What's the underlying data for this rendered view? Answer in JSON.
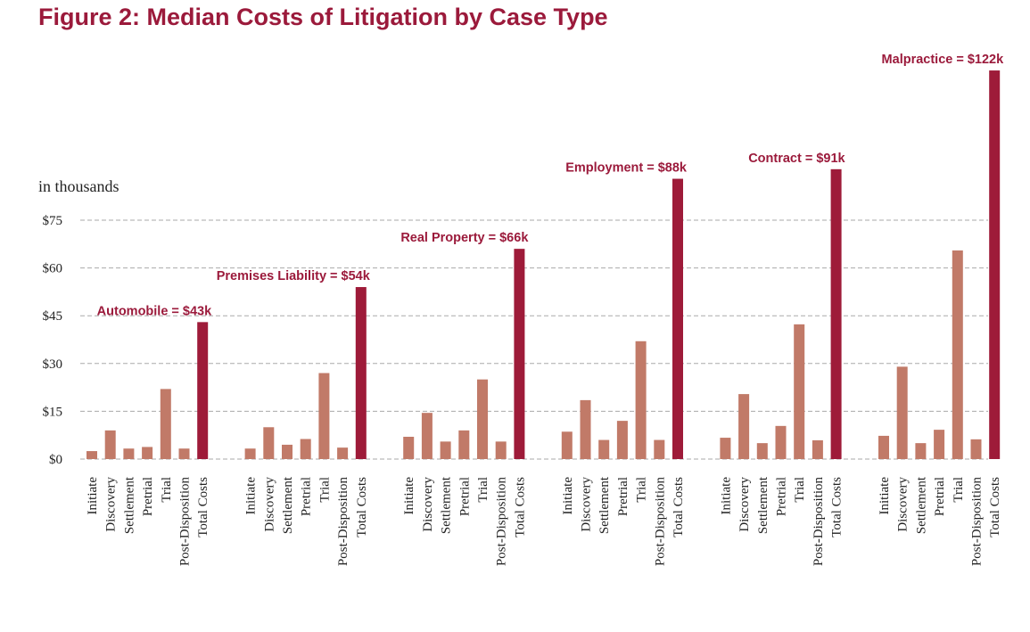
{
  "chart_data": {
    "type": "bar",
    "title": "Figure 2: Median Costs of Litigation by Case Type",
    "ylabel": "in thousands",
    "xlabel": "",
    "ylim": [
      0,
      75
    ],
    "yticks": [
      0,
      15,
      30,
      45,
      60,
      75
    ],
    "ytick_labels": [
      "$0",
      "$15",
      "$30",
      "$45",
      "$60",
      "$75"
    ],
    "grid": true,
    "categories": [
      "Initiate",
      "Discovery",
      "Settlement",
      "Pretrial",
      "Trial",
      "Post-Disposition",
      "Total Costs"
    ],
    "colors": {
      "stage": "#c17a68",
      "total": "#9e1b39",
      "title": "#9b1a3b",
      "grid": "#aaaaaa"
    },
    "groups": [
      {
        "name": "Automobile",
        "annotation": "Automobile = $43k",
        "values": [
          2.5,
          9,
          3.3,
          3.8,
          22,
          3.3,
          43
        ]
      },
      {
        "name": "Premises Liability",
        "annotation": "Premises Liability = $54k",
        "values": [
          3.3,
          10,
          4.5,
          6.3,
          27,
          3.6,
          54
        ]
      },
      {
        "name": "Real Property",
        "annotation": "Real Property = $66k",
        "values": [
          7,
          14.5,
          5.5,
          9,
          25,
          5.5,
          66
        ]
      },
      {
        "name": "Employment",
        "annotation": "Employment = $88k",
        "values": [
          8.6,
          18.5,
          6,
          12,
          37,
          6,
          88
        ]
      },
      {
        "name": "Contract",
        "annotation": "Contract = $91k",
        "values": [
          6.7,
          20.4,
          5,
          10.4,
          42.3,
          5.9,
          91
        ]
      },
      {
        "name": "Malpractice",
        "annotation": "Malpractice = $122k",
        "values": [
          7.3,
          29,
          5,
          9.2,
          65.5,
          6.2,
          122
        ]
      }
    ]
  }
}
